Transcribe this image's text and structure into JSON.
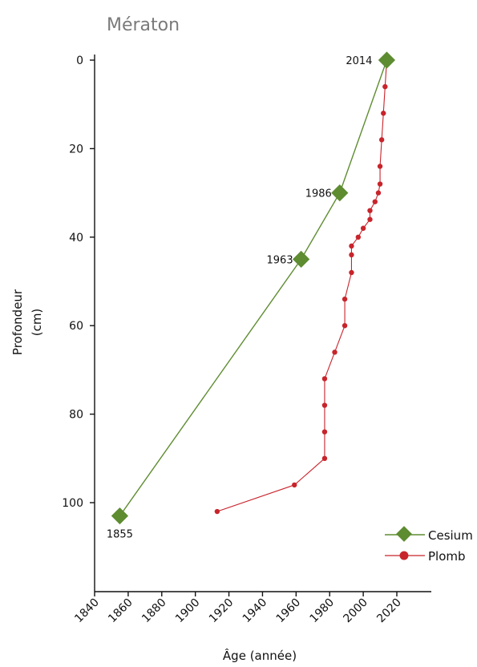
{
  "chart_data": {
    "type": "line",
    "title": "Mératon",
    "xlabel": "Âge (année)",
    "ylabel_lines": [
      "Profondeur",
      "(cm)"
    ],
    "xlim": [
      1840,
      2030
    ],
    "ylim": [
      0,
      118
    ],
    "y_inverted": true,
    "x_ticks": [
      1840,
      1860,
      1880,
      1900,
      1920,
      1940,
      1960,
      1980,
      2000,
      2020
    ],
    "y_ticks": [
      0,
      20,
      40,
      60,
      80,
      100
    ],
    "legend_position": "bottom-right",
    "series": [
      {
        "name": "Cesium",
        "color": "#5e8c31",
        "marker": "diamond",
        "points": [
          {
            "x": 2014,
            "y": 0,
            "label": "2014"
          },
          {
            "x": 1986,
            "y": 30,
            "label": "1986"
          },
          {
            "x": 1963,
            "y": 45,
            "label": "1963"
          },
          {
            "x": 1855,
            "y": 103,
            "label": "1855"
          }
        ]
      },
      {
        "name": "Plomb",
        "color": "#c8242b",
        "marker": "circle",
        "points": [
          {
            "x": 2014,
            "y": 0
          },
          {
            "x": 2013,
            "y": 6
          },
          {
            "x": 2012,
            "y": 12
          },
          {
            "x": 2011,
            "y": 18
          },
          {
            "x": 2010,
            "y": 24
          },
          {
            "x": 2010,
            "y": 28
          },
          {
            "x": 2009,
            "y": 30
          },
          {
            "x": 2007,
            "y": 32
          },
          {
            "x": 2004,
            "y": 34
          },
          {
            "x": 2004,
            "y": 36
          },
          {
            "x": 2000,
            "y": 38
          },
          {
            "x": 1997,
            "y": 40
          },
          {
            "x": 1993,
            "y": 42
          },
          {
            "x": 1993,
            "y": 44
          },
          {
            "x": 1993,
            "y": 48
          },
          {
            "x": 1989,
            "y": 54
          },
          {
            "x": 1989,
            "y": 60
          },
          {
            "x": 1983,
            "y": 66
          },
          {
            "x": 1977,
            "y": 72
          },
          {
            "x": 1977,
            "y": 78
          },
          {
            "x": 1977,
            "y": 84
          },
          {
            "x": 1977,
            "y": 90
          },
          {
            "x": 1959,
            "y": 96
          },
          {
            "x": 1913,
            "y": 102
          }
        ]
      }
    ]
  }
}
